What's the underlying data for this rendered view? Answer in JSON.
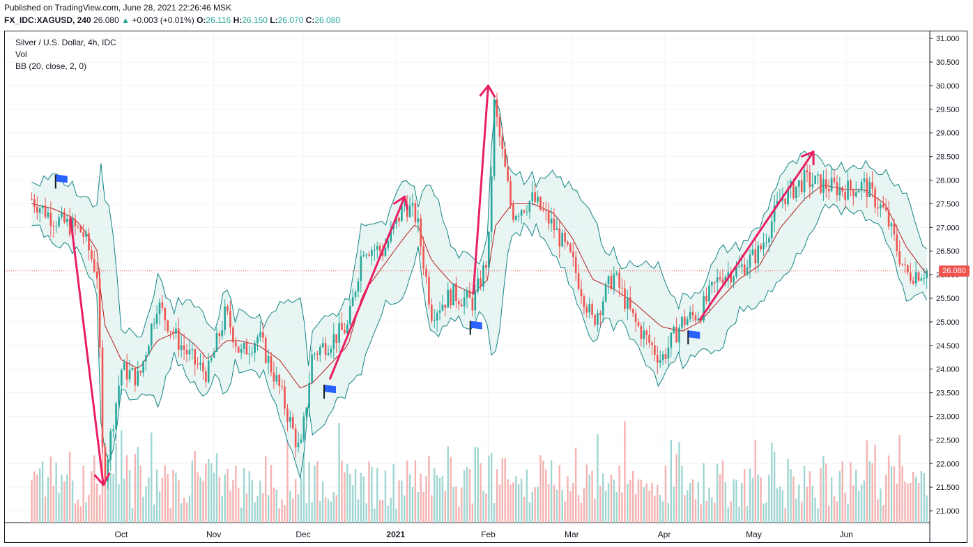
{
  "header": {
    "published": "Published on TradingView.com, June 28, 2021 22:26:46 MSK",
    "symbol": "FX_IDC:XAGUSD, 240",
    "last": "26.080",
    "change": "+0.003 (+0.01%)",
    "open_label": "O:",
    "open": "26.116",
    "high_label": "H:",
    "high": "26.150",
    "low_label": "L:",
    "low": "26.070",
    "close_label": "C:",
    "close": "26.080",
    "up_arrow": "▲"
  },
  "legend": {
    "title": "Silver / U.S. Dollar, 4h, IDC",
    "volume": "Vol",
    "bb": "BB (20, close, 2, 0)"
  },
  "price_badge": "26.080",
  "colors": {
    "up": "#26a69a",
    "down": "#ef5350",
    "band": "#138484",
    "band_fill": "#e0f2ef",
    "basis": "#b71c1c",
    "arrow": "#e91e63",
    "flag": "#2962ff",
    "last_line": "#ef5350"
  },
  "chart_data": {
    "type": "line",
    "title": "Silver / U.S. Dollar, 4h, IDC",
    "indicators": [
      "Vol",
      "BB (20, close, 2, 0)"
    ],
    "x_tick_labels": [
      "Oct",
      "Nov",
      "Dec",
      "2021",
      "Feb",
      "Mar",
      "Apr",
      "May",
      "Jun"
    ],
    "y_tick_labels": [
      "31.000",
      "30.500",
      "30.000",
      "29.500",
      "29.000",
      "28.500",
      "28.000",
      "27.500",
      "27.000",
      "26.500",
      "26.000",
      "25.500",
      "25.000",
      "24.500",
      "24.000",
      "23.500",
      "23.000",
      "22.500",
      "22.000",
      "21.500",
      "21.000"
    ],
    "ylim": [
      20.75,
      31.15
    ],
    "last_price": 26.08,
    "x": [
      "2020-09-01",
      "2020-09-08",
      "2020-09-15",
      "2020-09-18",
      "2020-09-23",
      "2020-09-25",
      "2020-10-01",
      "2020-10-07",
      "2020-10-13",
      "2020-10-20",
      "2020-10-26",
      "2020-10-30",
      "2020-11-05",
      "2020-11-10",
      "2020-11-16",
      "2020-11-23",
      "2020-11-30",
      "2020-12-04",
      "2020-12-10",
      "2020-12-16",
      "2020-12-21",
      "2020-12-28",
      "2021-01-04",
      "2021-01-08",
      "2021-01-13",
      "2021-01-20",
      "2021-01-27",
      "2021-02-01",
      "2021-02-03",
      "2021-02-09",
      "2021-02-16",
      "2021-02-23",
      "2021-03-01",
      "2021-03-08",
      "2021-03-15",
      "2021-03-22",
      "2021-03-31",
      "2021-04-07",
      "2021-04-13",
      "2021-04-20",
      "2021-04-26",
      "2021-05-03",
      "2021-05-10",
      "2021-05-18",
      "2021-05-24",
      "2021-06-01",
      "2021-06-07",
      "2021-06-14",
      "2021-06-21",
      "2021-06-28"
    ],
    "series": [
      {
        "name": "Close",
        "values": [
          27.6,
          27.2,
          27.0,
          26.9,
          26.0,
          21.6,
          24.0,
          23.8,
          25.4,
          24.6,
          24.1,
          23.9,
          25.2,
          24.3,
          24.7,
          23.6,
          22.2,
          24.3,
          24.6,
          24.9,
          26.6,
          26.5,
          27.5,
          27.2,
          25.2,
          25.6,
          25.4,
          26.4,
          29.6,
          27.3,
          27.6,
          27.0,
          26.3,
          25.0,
          26.0,
          25.0,
          24.2,
          25.0,
          25.2,
          26.0,
          26.1,
          26.5,
          27.6,
          28.0,
          27.9,
          27.8,
          27.9,
          27.3,
          26.0,
          26.08
        ]
      },
      {
        "name": "Basis",
        "values": [
          27.5,
          27.4,
          27.2,
          27.0,
          26.5,
          25.0,
          24.2,
          24.0,
          24.6,
          24.8,
          24.5,
          24.2,
          24.6,
          24.6,
          24.5,
          24.2,
          23.6,
          23.7,
          24.1,
          24.5,
          25.6,
          26.2,
          26.8,
          27.1,
          26.3,
          25.8,
          25.6,
          25.9,
          27.0,
          27.5,
          27.5,
          27.3,
          26.8,
          25.9,
          25.7,
          25.4,
          24.9,
          24.8,
          25.0,
          25.5,
          25.9,
          26.2,
          27.0,
          27.6,
          27.9,
          27.8,
          27.8,
          27.5,
          26.6,
          26.0
        ]
      }
    ],
    "annotations": [
      {
        "type": "arrow",
        "from": [
          "2020-09-14",
          27.2
        ],
        "to": [
          "2020-09-25",
          21.55
        ]
      },
      {
        "type": "arrow",
        "from": [
          "2020-12-10",
          23.8
        ],
        "to": [
          "2021-01-04",
          27.65
        ]
      },
      {
        "type": "arrow",
        "from": [
          "2021-01-27",
          25.6
        ],
        "to": [
          "2021-02-01",
          30.0
        ]
      },
      {
        "type": "arrow",
        "from": [
          "2021-04-13",
          25.05
        ],
        "to": [
          "2021-05-21",
          28.6
        ]
      },
      {
        "type": "flag",
        "at": [
          "2020-09-09",
          28.0
        ]
      },
      {
        "type": "flag",
        "at": [
          "2020-12-08",
          23.55
        ]
      },
      {
        "type": "flag",
        "at": [
          "2021-01-26",
          24.9
        ]
      },
      {
        "type": "flag",
        "at": [
          "2021-04-09",
          24.7
        ]
      }
    ]
  }
}
